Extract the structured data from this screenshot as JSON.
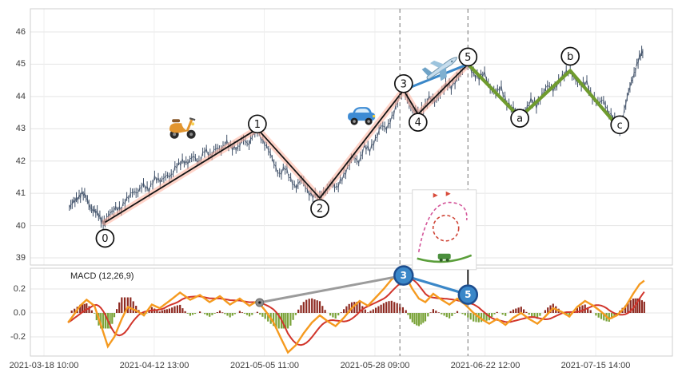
{
  "price_chart": {
    "y_ticks": [
      "46",
      "45",
      "44",
      "43",
      "42",
      "41",
      "40",
      "39"
    ],
    "x_ticks": [
      "2021-03-18 10:00",
      "2021-04-12 13:00",
      "2021-05-05 11:00",
      "2021-05-28 09:00",
      "2021-06-22 12:00",
      "2021-07-15 14:00"
    ]
  },
  "macd_panel": {
    "label": "MACD (12,26,9)",
    "y_ticks": [
      "0.2",
      "0.0",
      "-0.2"
    ]
  },
  "chart_data": [
    {
      "type": "line",
      "name": "price",
      "x_unit": "trading days since 2021-03-18 10:00",
      "x_tick_days": [
        0,
        23.8,
        47.6,
        71.5,
        95.3,
        119.2
      ],
      "x_tick_labels": [
        "2021-03-18 10:00",
        "2021-04-12 13:00",
        "2021-05-05 11:00",
        "2021-05-28 09:00",
        "2021-06-22 12:00",
        "2021-07-15 14:00"
      ],
      "ylim": [
        38.85,
        46.2
      ],
      "y_grid": [
        46,
        45,
        44,
        43,
        42,
        41,
        40,
        39
      ],
      "price": [
        [
          5.5,
          40.55
        ],
        [
          6.4,
          40.7
        ],
        [
          7.3,
          40.9
        ],
        [
          8.2,
          41.0
        ],
        [
          9.1,
          40.85
        ],
        [
          10.0,
          40.6
        ],
        [
          10.9,
          40.45
        ],
        [
          11.8,
          40.3
        ],
        [
          12.6,
          40.15
        ],
        [
          13.2,
          40.1
        ],
        [
          14.3,
          40.35
        ],
        [
          15.5,
          40.6
        ],
        [
          16.7,
          40.5
        ],
        [
          17.9,
          40.8
        ],
        [
          19.1,
          41.1
        ],
        [
          20.3,
          41.0
        ],
        [
          21.5,
          41.25
        ],
        [
          22.7,
          41.15
        ],
        [
          23.9,
          41.45
        ],
        [
          25.1,
          41.35
        ],
        [
          26.3,
          41.6
        ],
        [
          27.5,
          41.5
        ],
        [
          28.7,
          41.85
        ],
        [
          29.9,
          42.05
        ],
        [
          31.1,
          41.9
        ],
        [
          32.3,
          42.15
        ],
        [
          33.5,
          42.0
        ],
        [
          34.7,
          42.3
        ],
        [
          35.9,
          42.15
        ],
        [
          37.1,
          42.45
        ],
        [
          38.3,
          42.3
        ],
        [
          39.5,
          42.6
        ],
        [
          40.7,
          42.45
        ],
        [
          41.9,
          42.35
        ],
        [
          43.1,
          42.7
        ],
        [
          44.3,
          42.55
        ],
        [
          45.3,
          42.85
        ],
        [
          46.1,
          43.0
        ],
        [
          47.3,
          42.65
        ],
        [
          48.5,
          42.3
        ],
        [
          49.7,
          41.95
        ],
        [
          50.9,
          41.6
        ],
        [
          52.1,
          41.75
        ],
        [
          53.3,
          41.45
        ],
        [
          54.5,
          41.2
        ],
        [
          55.7,
          41.4
        ],
        [
          56.9,
          41.1
        ],
        [
          58.1,
          40.95
        ],
        [
          59.6,
          40.85
        ],
        [
          60.8,
          41.1
        ],
        [
          62.0,
          41.35
        ],
        [
          63.2,
          41.1
        ],
        [
          64.4,
          41.5
        ],
        [
          65.6,
          41.8
        ],
        [
          66.8,
          42.1
        ],
        [
          68.0,
          42.0
        ],
        [
          69.2,
          42.45
        ],
        [
          70.4,
          42.3
        ],
        [
          71.6,
          42.7
        ],
        [
          72.8,
          43.1
        ],
        [
          74.0,
          42.95
        ],
        [
          75.2,
          43.4
        ],
        [
          76.4,
          43.85
        ],
        [
          77.7,
          44.2
        ],
        [
          78.9,
          43.8
        ],
        [
          80.0,
          43.55
        ],
        [
          80.8,
          43.45
        ],
        [
          82.0,
          43.7
        ],
        [
          83.2,
          43.95
        ],
        [
          84.4,
          43.8
        ],
        [
          85.6,
          44.15
        ],
        [
          86.8,
          44.35
        ],
        [
          88.0,
          44.25
        ],
        [
          89.2,
          44.6
        ],
        [
          90.4,
          44.8
        ],
        [
          91.6,
          45.0
        ],
        [
          92.8,
          44.75
        ],
        [
          94.0,
          44.55
        ],
        [
          95.2,
          44.7
        ],
        [
          96.4,
          44.3
        ],
        [
          97.6,
          44.1
        ],
        [
          98.8,
          44.25
        ],
        [
          100.0,
          43.85
        ],
        [
          101.4,
          43.6
        ],
        [
          102.8,
          43.35
        ],
        [
          104.0,
          43.6
        ],
        [
          105.2,
          43.85
        ],
        [
          106.4,
          43.7
        ],
        [
          107.6,
          44.1
        ],
        [
          108.8,
          44.3
        ],
        [
          110.0,
          44.2
        ],
        [
          111.2,
          44.5
        ],
        [
          112.4,
          44.65
        ],
        [
          113.7,
          44.8
        ],
        [
          114.9,
          44.55
        ],
        [
          116.1,
          44.3
        ],
        [
          117.3,
          44.45
        ],
        [
          118.5,
          44.0
        ],
        [
          119.7,
          43.75
        ],
        [
          120.9,
          43.9
        ],
        [
          122.1,
          43.5
        ],
        [
          123.3,
          43.25
        ],
        [
          124.4,
          43.0
        ],
        [
          125.4,
          43.6
        ],
        [
          126.3,
          44.1
        ],
        [
          127.2,
          44.6
        ],
        [
          128.1,
          45.0
        ],
        [
          128.9,
          45.25
        ],
        [
          129.6,
          45.45
        ]
      ],
      "wave_points": {
        "impulse": [
          {
            "label": "0",
            "day": 13.2,
            "price": 40.1,
            "dy": 20
          },
          {
            "label": "1",
            "day": 46.1,
            "price": 43.0,
            "dy": -6
          },
          {
            "label": "2",
            "day": 59.6,
            "price": 40.85,
            "dy": 13
          },
          {
            "label": "3",
            "day": 77.7,
            "price": 44.2,
            "dy": -8
          },
          {
            "label": "4",
            "day": 80.8,
            "price": 43.45,
            "dy": 10
          },
          {
            "label": "5",
            "day": 91.6,
            "price": 45.0,
            "dy": -9
          }
        ],
        "corrective": [
          {
            "label": "a",
            "day": 102.8,
            "price": 43.35,
            "dy": 1
          },
          {
            "label": "b",
            "day": 113.7,
            "price": 44.8,
            "dy": -18
          },
          {
            "label": "c",
            "day": 124.4,
            "price": 43.0,
            "dy": -5
          }
        ]
      },
      "trendline_3_5": {
        "from": {
          "day": 77.7,
          "price": 44.2
        },
        "to": {
          "day": 91.6,
          "price": 45.0
        }
      },
      "dashed_vlines_days": [
        76.9,
        91.6
      ],
      "decorations": [
        {
          "name": "scooter-icon",
          "kind": "scooter",
          "day": 29.9,
          "price": 43.1
        },
        {
          "name": "car-icon",
          "kind": "car",
          "day": 68.6,
          "price": 43.4
        },
        {
          "name": "airplane-icon",
          "kind": "airplane",
          "day": 85.9,
          "price": 44.85,
          "rotate": -33
        },
        {
          "name": "roller-coaster-icon",
          "kind": "roller-coaster",
          "day": 86.5,
          "price": 39.87
        }
      ],
      "style": {
        "bars": "#3f5068",
        "impulse": "#141414",
        "impulse_glow": "#ffb09c",
        "corrective": "#6f9b2e",
        "trend": "#3a87c8"
      }
    },
    {
      "type": "line+bar",
      "name": "macd",
      "label": "MACD (12,26,9)",
      "ylim": [
        -0.37,
        0.37
      ],
      "y_grid": [
        0.2,
        0,
        -0.2
      ],
      "macd": [
        [
          5.2,
          -0.08
        ],
        [
          6.0,
          -0.04
        ],
        [
          7.8,
          0.06
        ],
        [
          9.2,
          0.11
        ],
        [
          10.9,
          0.06
        ],
        [
          12.3,
          -0.1
        ],
        [
          13.8,
          -0.28
        ],
        [
          15.2,
          -0.2
        ],
        [
          16.8,
          -0.05
        ],
        [
          18.1,
          0.05
        ],
        [
          19.9,
          0.02
        ],
        [
          21.6,
          -0.02
        ],
        [
          23.3,
          0.07
        ],
        [
          25.0,
          0.04
        ],
        [
          27.1,
          0.1
        ],
        [
          29.4,
          0.17
        ],
        [
          31.6,
          0.11
        ],
        [
          33.7,
          0.15
        ],
        [
          35.8,
          0.09
        ],
        [
          38.0,
          0.14
        ],
        [
          40.2,
          0.07
        ],
        [
          42.3,
          0.12
        ],
        [
          44.4,
          0.06
        ],
        [
          46.1,
          0.1
        ],
        [
          47.8,
          0.02
        ],
        [
          49.6,
          -0.08
        ],
        [
          51.3,
          -0.22
        ],
        [
          52.7,
          -0.33
        ],
        [
          54.4,
          -0.27
        ],
        [
          56.1,
          -0.17
        ],
        [
          57.9,
          -0.08
        ],
        [
          59.6,
          -0.02
        ],
        [
          61.3,
          -0.07
        ],
        [
          63.0,
          -0.11
        ],
        [
          64.8,
          -0.04
        ],
        [
          66.5,
          0.04
        ],
        [
          68.2,
          0.1
        ],
        [
          70.0,
          0.06
        ],
        [
          71.7,
          0.13
        ],
        [
          73.4,
          0.2
        ],
        [
          75.1,
          0.28
        ],
        [
          76.9,
          0.32
        ],
        [
          78.2,
          0.3
        ],
        [
          79.6,
          0.2
        ],
        [
          81.0,
          0.12
        ],
        [
          82.4,
          0.09
        ],
        [
          84.1,
          0.16
        ],
        [
          85.9,
          0.11
        ],
        [
          87.6,
          0.07
        ],
        [
          89.3,
          0.12
        ],
        [
          91.0,
          0.07
        ],
        [
          92.8,
          0.0
        ],
        [
          94.5,
          -0.05
        ],
        [
          96.2,
          -0.09
        ],
        [
          97.9,
          -0.05
        ],
        [
          99.7,
          -0.1
        ],
        [
          101.4,
          -0.04
        ],
        [
          103.1,
          0.0
        ],
        [
          104.8,
          -0.05
        ],
        [
          106.6,
          -0.09
        ],
        [
          108.3,
          -0.03
        ],
        [
          110.0,
          0.04
        ],
        [
          111.8,
          0.01
        ],
        [
          113.5,
          -0.03
        ],
        [
          115.2,
          0.05
        ],
        [
          116.9,
          0.1
        ],
        [
          118.7,
          0.06
        ],
        [
          120.4,
          0.01
        ],
        [
          122.1,
          -0.05
        ],
        [
          123.8,
          -0.02
        ],
        [
          125.6,
          0.05
        ],
        [
          127.3,
          0.16
        ],
        [
          128.7,
          0.24
        ],
        [
          129.7,
          0.27
        ]
      ],
      "divergence_gray": {
        "from": [
          46.6,
          0.087
        ],
        "to": [
          77.7,
          0.313
        ]
      },
      "divergence_blue": {
        "from": [
          77.7,
          0.313
        ],
        "to": [
          91.6,
          0.153
        ],
        "from_label": "3",
        "to_label": "5"
      },
      "style": {
        "macd": "#f59a1f",
        "signal": "#d1352b",
        "hist_pos": "#8e2a21",
        "hist_neg": "#7aa339",
        "gray": "#9b9b9b",
        "blue": "#3a87c8"
      }
    }
  ]
}
